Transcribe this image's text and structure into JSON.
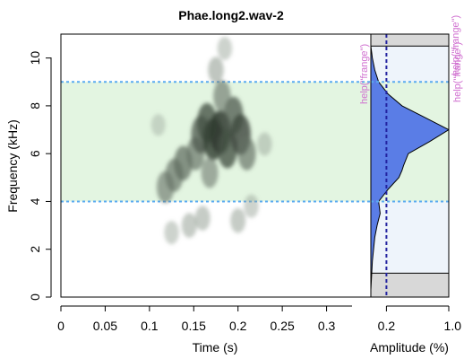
{
  "chart_data": [
    {
      "type": "heatmap",
      "title": "Phae.long2.wav-2",
      "xlabel": "Time (s)",
      "ylabel": "Frequency (kHz)",
      "xlim": [
        0,
        0.35
      ],
      "ylim": [
        0,
        11
      ],
      "x_ticks": [
        0,
        0.05,
        0.1,
        0.15,
        0.2,
        0.25,
        0.3
      ],
      "x_tick_labels": [
        "0",
        "0.05",
        "0.1",
        "0.15",
        "0.2",
        "0.25",
        "0.3"
      ],
      "y_ticks": [
        0,
        2,
        4,
        6,
        8,
        10
      ],
      "y_tick_labels": [
        "0",
        "2",
        "4",
        "6",
        "8",
        "10"
      ],
      "highlight_band_khz": [
        4.0,
        9.0
      ],
      "band_fill": "#e3f5e1",
      "band_line_color": "#5aabf0",
      "energy_blobs": [
        {
          "t": 0.118,
          "f": 4.6,
          "a": 0.55
        },
        {
          "t": 0.128,
          "f": 5.1,
          "a": 0.6
        },
        {
          "t": 0.138,
          "f": 5.6,
          "a": 0.65
        },
        {
          "t": 0.152,
          "f": 6.0,
          "a": 0.6
        },
        {
          "t": 0.158,
          "f": 6.8,
          "a": 0.75
        },
        {
          "t": 0.165,
          "f": 7.3,
          "a": 0.8
        },
        {
          "t": 0.172,
          "f": 6.6,
          "a": 0.9
        },
        {
          "t": 0.18,
          "f": 6.9,
          "a": 0.95
        },
        {
          "t": 0.188,
          "f": 6.2,
          "a": 0.8
        },
        {
          "t": 0.195,
          "f": 7.6,
          "a": 0.75
        },
        {
          "t": 0.203,
          "f": 6.8,
          "a": 0.85
        },
        {
          "t": 0.21,
          "f": 6.0,
          "a": 0.6
        },
        {
          "t": 0.168,
          "f": 5.2,
          "a": 0.5
        },
        {
          "t": 0.182,
          "f": 8.4,
          "a": 0.55
        },
        {
          "t": 0.175,
          "f": 9.5,
          "a": 0.35
        },
        {
          "t": 0.185,
          "f": 10.4,
          "a": 0.25
        },
        {
          "t": 0.125,
          "f": 2.7,
          "a": 0.25
        },
        {
          "t": 0.145,
          "f": 3.0,
          "a": 0.3
        },
        {
          "t": 0.16,
          "f": 3.3,
          "a": 0.3
        },
        {
          "t": 0.2,
          "f": 3.2,
          "a": 0.3
        },
        {
          "t": 0.215,
          "f": 3.8,
          "a": 0.25
        },
        {
          "t": 0.11,
          "f": 7.2,
          "a": 0.2
        },
        {
          "t": 0.23,
          "f": 6.4,
          "a": 0.25
        }
      ]
    },
    {
      "type": "area",
      "xlabel": "Amplitude (%)",
      "x_ticks": [
        0.2,
        1.0
      ],
      "x_tick_labels": [
        "0.2",
        "1.0"
      ],
      "mean_line_value": 0.2,
      "frequency_khz": [
        0.3,
        1.5,
        2.5,
        3.0,
        3.5,
        4.0,
        4.5,
        5.0,
        5.3,
        5.5,
        6.0,
        6.5,
        7.0,
        7.5,
        8.0,
        8.5,
        9.0,
        9.5,
        10.0,
        10.5
      ],
      "amplitude": [
        0.0,
        0.02,
        0.05,
        0.08,
        0.12,
        0.1,
        0.22,
        0.36,
        0.4,
        0.42,
        0.48,
        0.75,
        1.0,
        0.7,
        0.4,
        0.22,
        0.1,
        0.05,
        0.02,
        0.0
      ],
      "shaded_low_khz": [
        0,
        1.0
      ],
      "shaded_high_khz": [
        10.5,
        11
      ],
      "range_fill": "#eef4fb",
      "area_fill": "#5a7de6",
      "help_labels": [
        "help(\"frange\")",
        "help(\"frange\")",
        "help(\"frange\")"
      ]
    }
  ]
}
